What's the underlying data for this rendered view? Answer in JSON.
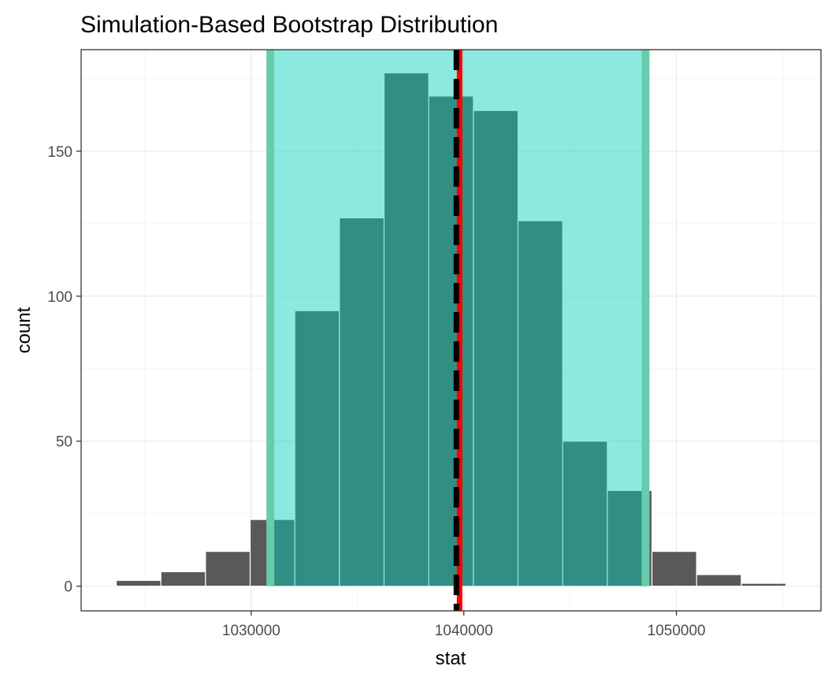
{
  "chart_data": {
    "type": "bar",
    "title": "Simulation-Based Bootstrap Distribution",
    "xlabel": "stat",
    "ylabel": "count",
    "xlim": [
      1022000,
      1056800
    ],
    "ylim": [
      -8.5,
      185
    ],
    "x_ticks": [
      1030000,
      1040000,
      1050000
    ],
    "x_tick_labels": [
      "1030000",
      "1040000",
      "1050000"
    ],
    "y_ticks": [
      0,
      50,
      100,
      150
    ],
    "y_tick_labels": [
      "0",
      "50",
      "100",
      "150"
    ],
    "grid": true,
    "bins": [
      {
        "x_start": 1023650,
        "x_end": 1025750,
        "count": 2
      },
      {
        "x_start": 1025750,
        "x_end": 1027850,
        "count": 5
      },
      {
        "x_start": 1027850,
        "x_end": 1029950,
        "count": 12
      },
      {
        "x_start": 1029950,
        "x_end": 1032050,
        "count": 23
      },
      {
        "x_start": 1032050,
        "x_end": 1034150,
        "count": 95
      },
      {
        "x_start": 1034150,
        "x_end": 1036250,
        "count": 127
      },
      {
        "x_start": 1036250,
        "x_end": 1038350,
        "count": 177
      },
      {
        "x_start": 1038350,
        "x_end": 1040450,
        "count": 169
      },
      {
        "x_start": 1040450,
        "x_end": 1042550,
        "count": 164
      },
      {
        "x_start": 1042550,
        "x_end": 1044650,
        "count": 126
      },
      {
        "x_start": 1044650,
        "x_end": 1046750,
        "count": 50
      },
      {
        "x_start": 1046750,
        "x_end": 1048850,
        "count": 33
      },
      {
        "x_start": 1048850,
        "x_end": 1050950,
        "count": 12
      },
      {
        "x_start": 1050950,
        "x_end": 1053050,
        "count": 4
      },
      {
        "x_start": 1053050,
        "x_end": 1055150,
        "count": 1
      }
    ],
    "confidence_interval": {
      "lower": 1030900,
      "upper": 1048550
    },
    "vlines": [
      {
        "x": 1039800,
        "color": "#ff0000",
        "style": "solid"
      },
      {
        "x": 1039650,
        "color": "#000000",
        "style": "dashed"
      }
    ],
    "colors": {
      "bar": "#595959",
      "shade": "#8debe3",
      "ci_edge": "#66cdaa"
    }
  }
}
